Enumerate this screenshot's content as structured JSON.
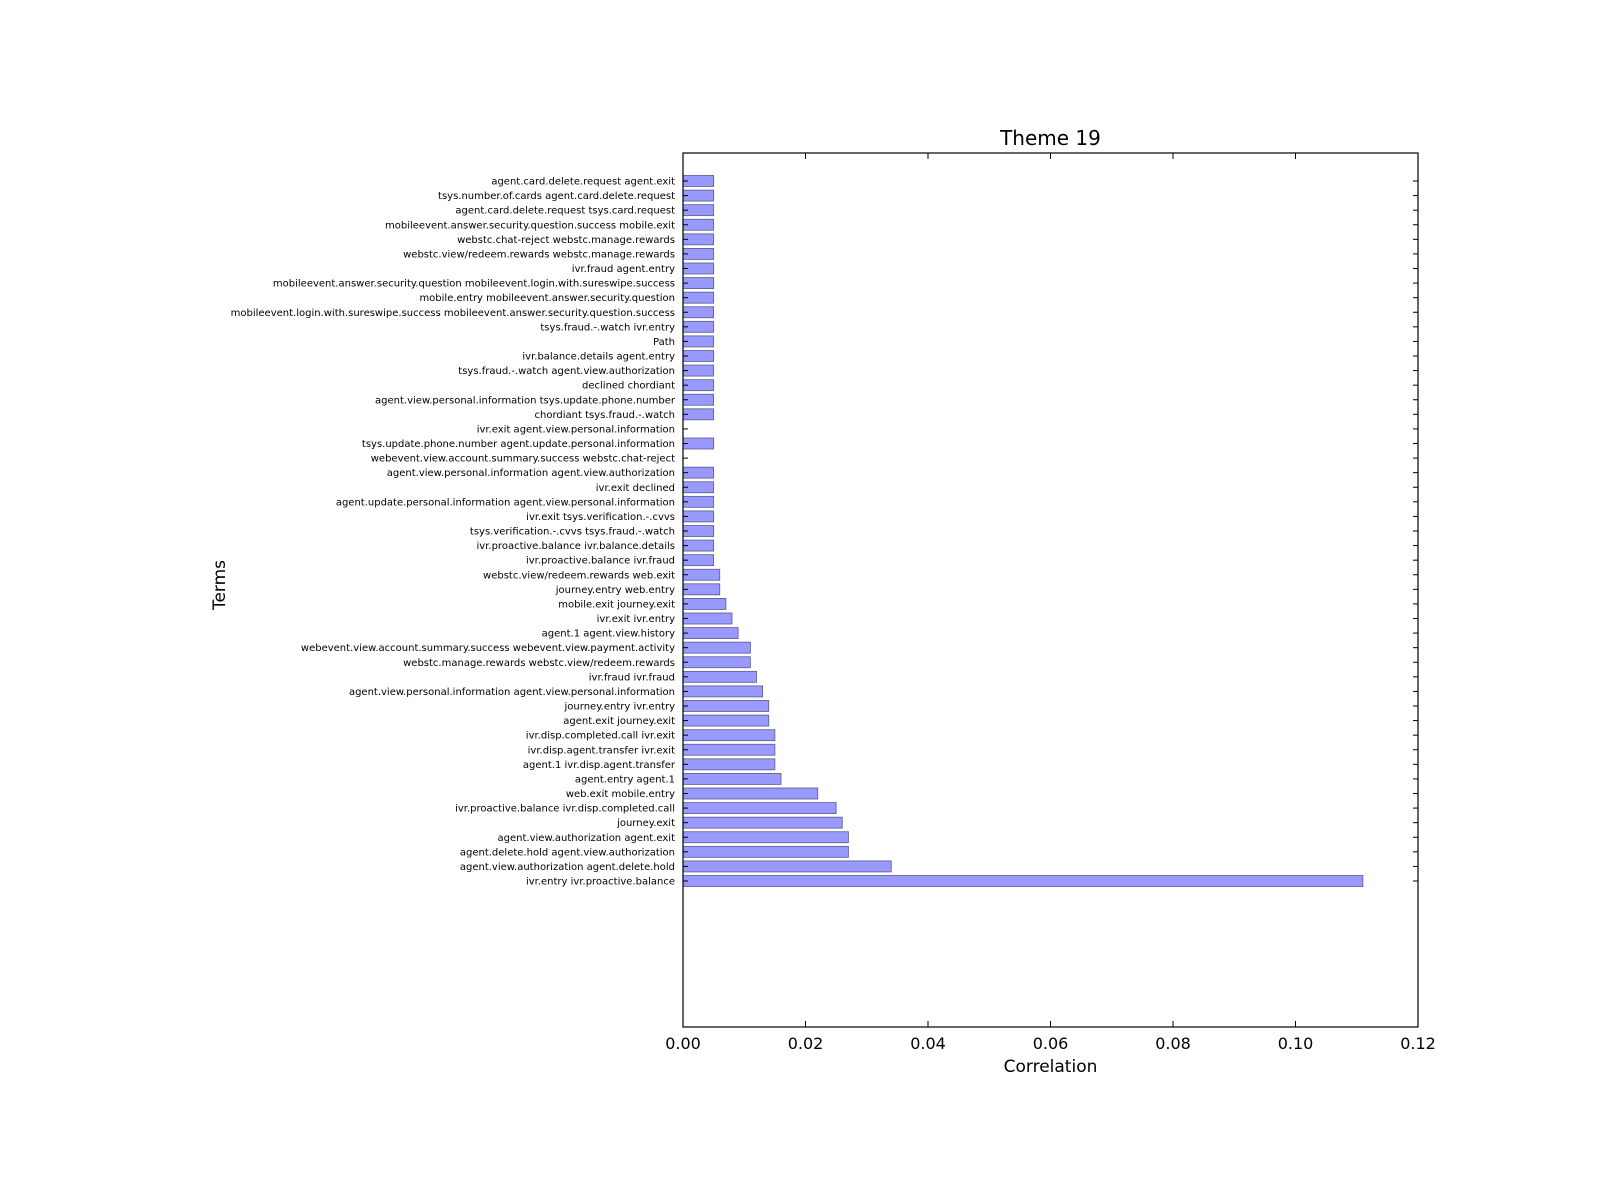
{
  "chart_data": {
    "type": "bar",
    "orientation": "horizontal",
    "title": "Theme 19",
    "xlabel": "Correlation",
    "ylabel": "Terms",
    "xlim": [
      0,
      0.12
    ],
    "xticks": [
      "0.00",
      "0.02",
      "0.04",
      "0.06",
      "0.08",
      "0.10",
      "0.12"
    ],
    "grid": false,
    "bar_color": "#9999ff",
    "categories": [
      "ivr.entry ivr.proactive.balance",
      "agent.view.authorization agent.delete.hold",
      "agent.delete.hold agent.view.authorization",
      "agent.view.authorization agent.exit",
      "journey.exit",
      "ivr.proactive.balance ivr.disp.completed.call",
      "web.exit mobile.entry",
      "agent.entry agent.1",
      "agent.1 ivr.disp.agent.transfer",
      "ivr.disp.agent.transfer ivr.exit",
      "ivr.disp.completed.call ivr.exit",
      "agent.exit journey.exit",
      "journey.entry ivr.entry",
      "agent.view.personal.information agent.view.personal.information",
      "ivr.fraud ivr.fraud",
      "webstc.manage.rewards webstc.view/redeem.rewards",
      "webevent.view.account.summary.success webevent.view.payment.activity",
      "agent.1 agent.view.history",
      "ivr.exit ivr.entry",
      "mobile.exit journey.exit",
      "journey.entry web.entry",
      "webstc.view/redeem.rewards web.exit",
      "ivr.proactive.balance ivr.fraud",
      "ivr.proactive.balance ivr.balance.details",
      "tsys.verification.-.cvvs tsys.fraud.-.watch",
      "ivr.exit tsys.verification.-.cvvs",
      "agent.update.personal.information agent.view.personal.information",
      "ivr.exit declined",
      "agent.view.personal.information agent.view.authorization",
      "webevent.view.account.summary.success webstc.chat-reject",
      "tsys.update.phone.number agent.update.personal.information",
      "ivr.exit agent.view.personal.information",
      "chordiant tsys.fraud.-.watch",
      "agent.view.personal.information tsys.update.phone.number",
      "declined chordiant",
      "tsys.fraud.-.watch agent.view.authorization",
      "ivr.balance.details agent.entry",
      "Path",
      "tsys.fraud.-.watch ivr.entry",
      "mobileevent.login.with.sureswipe.success mobileevent.answer.security.question.success",
      "mobile.entry mobileevent.answer.security.question",
      "mobileevent.answer.security.question mobileevent.login.with.sureswipe.success",
      "ivr.fraud agent.entry",
      "webstc.view/redeem.rewards webstc.manage.rewards",
      "webstc.chat-reject webstc.manage.rewards",
      "mobileevent.answer.security.question.success mobile.exit",
      "agent.card.delete.request tsys.card.request",
      "tsys.number.of.cards agent.card.delete.request",
      "agent.card.delete.request agent.exit"
    ],
    "values": [
      0.111,
      0.034,
      0.027,
      0.027,
      0.026,
      0.025,
      0.022,
      0.016,
      0.015,
      0.015,
      0.015,
      0.014,
      0.014,
      0.013,
      0.012,
      0.011,
      0.011,
      0.009,
      0.008,
      0.007,
      0.006,
      0.006,
      0.005,
      0.005,
      0.005,
      0.005,
      0.005,
      0.005,
      0.005,
      0.0,
      0.005,
      0.0,
      0.005,
      0.005,
      0.005,
      0.005,
      0.005,
      0.005,
      0.005,
      0.005,
      0.005,
      0.005,
      0.005,
      0.005,
      0.005,
      0.005,
      0.005,
      0.005,
      0.005
    ]
  }
}
